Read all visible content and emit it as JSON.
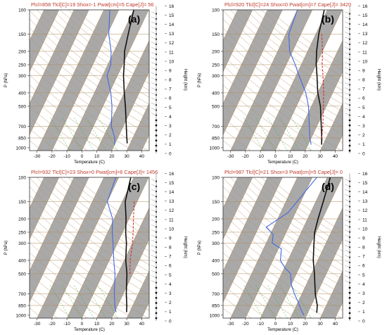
{
  "chart_data": [
    {
      "type": "line",
      "panel_label": "(a)",
      "header": "Plcl=858 Tlcl[C]=19 Shox=-1 Pwat[cm]=5 Cape[J]= 56",
      "xlabel": "Temperature (C)",
      "ylabel": "P (hPa)",
      "height_label": "Height (km)",
      "x_ticks": [
        "-30",
        "-20",
        "-10",
        "0",
        "10",
        "20",
        "30",
        "40"
      ],
      "p_ticks": [
        "100",
        "150",
        "200",
        "250",
        "300",
        "400",
        "500",
        "700",
        "850",
        "1000"
      ],
      "h_ticks": [
        "0",
        "1",
        "2",
        "3",
        "4",
        "5",
        "6",
        "7",
        "8",
        "9",
        "10",
        "11",
        "12",
        "13",
        "14",
        "15",
        "16"
      ],
      "xlim": [
        -35,
        45
      ],
      "plim": [
        100,
        1050
      ],
      "series": [
        {
          "role": "temperature",
          "color": "#111111",
          "points": [
            [
              -10,
              100
            ],
            [
              -6,
              150
            ],
            [
              -3,
              200
            ],
            [
              1,
              250
            ],
            [
              4,
              300
            ],
            [
              10,
              400
            ],
            [
              15,
              500
            ],
            [
              22,
              700
            ],
            [
              26,
              850
            ],
            [
              28,
              930
            ]
          ]
        },
        {
          "role": "dewpoint",
          "color": "#4169e1",
          "points": [
            [
              -26,
              100
            ],
            [
              -19,
              150
            ],
            [
              -12,
              200
            ],
            [
              -8,
              250
            ],
            [
              -7,
              300
            ],
            [
              1,
              400
            ],
            [
              6,
              500
            ],
            [
              12,
              700
            ],
            [
              18,
              850
            ],
            [
              20,
              950
            ]
          ]
        }
      ]
    },
    {
      "type": "line",
      "panel_label": "(b)",
      "header": "Plcl=920 Tlcl[C]=24 Shox=0 Pwat[cm]=7 Cape[J]= 3420",
      "xlabel": "Temperature (C)",
      "ylabel": "P (hPa)",
      "height_label": "Height (km)",
      "x_ticks": [
        "-30",
        "-20",
        "-10",
        "0",
        "10",
        "20",
        "30",
        "40"
      ],
      "p_ticks": [
        "100",
        "150",
        "200",
        "250",
        "300",
        "400",
        "500",
        "700",
        "850",
        "1000"
      ],
      "h_ticks": [
        "0",
        "1",
        "2",
        "3",
        "4",
        "5",
        "6",
        "7",
        "8",
        "9",
        "10",
        "11",
        "12",
        "13",
        "14",
        "15",
        "16"
      ],
      "xlim": [
        -35,
        45
      ],
      "plim": [
        100,
        1050
      ],
      "series": [
        {
          "role": "temperature",
          "color": "#111111",
          "points": [
            [
              -12,
              100
            ],
            [
              -8,
              150
            ],
            [
              -4,
              200
            ],
            [
              0,
              250
            ],
            [
              4,
              300
            ],
            [
              10,
              400
            ],
            [
              16,
              500
            ],
            [
              23,
              700
            ],
            [
              27,
              850
            ],
            [
              29,
              950
            ]
          ]
        },
        {
          "role": "dewpoint",
          "color": "#4169e1",
          "points": [
            [
              -30,
              100
            ],
            [
              -28,
              150
            ],
            [
              -22,
              200
            ],
            [
              -14,
              250
            ],
            [
              -8,
              300
            ],
            [
              2,
              400
            ],
            [
              8,
              500
            ],
            [
              15,
              700
            ],
            [
              19,
              850
            ],
            [
              22,
              950
            ]
          ]
        },
        {
          "role": "parcel",
          "color": "#d62728",
          "dashed": true,
          "points": [
            [
              -6,
              150
            ],
            [
              0,
              200
            ],
            [
              4,
              250
            ],
            [
              8,
              300
            ],
            [
              14,
              400
            ],
            [
              18,
              500
            ],
            [
              24,
              700
            ],
            [
              27,
              850
            ]
          ]
        }
      ]
    },
    {
      "type": "line",
      "panel_label": "(c)",
      "header": "Plcl=932 Tlcl[C]=23 Shox=0 Pwat[cm]=6 Cape[J]= 1456",
      "xlabel": "Temperature (C)",
      "ylabel": "P (hPa)",
      "height_label": "Height (km)",
      "x_ticks": [
        "-30",
        "-20",
        "-10",
        "0",
        "10",
        "20",
        "30",
        "40"
      ],
      "p_ticks": [
        "100",
        "150",
        "200",
        "250",
        "300",
        "400",
        "500",
        "700",
        "850",
        "1000"
      ],
      "h_ticks": [
        "0",
        "1",
        "2",
        "3",
        "4",
        "5",
        "6",
        "7",
        "8",
        "9",
        "10",
        "11",
        "12",
        "13",
        "14",
        "15",
        "16"
      ],
      "xlim": [
        -35,
        45
      ],
      "plim": [
        100,
        1050
      ],
      "series": [
        {
          "role": "temperature",
          "color": "#111111",
          "points": [
            [
              -12,
              100
            ],
            [
              -8,
              150
            ],
            [
              -2,
              200
            ],
            [
              2,
              250
            ],
            [
              6,
              300
            ],
            [
              11,
              400
            ],
            [
              16,
              500
            ],
            [
              22,
              700
            ],
            [
              26,
              850
            ],
            [
              28,
              950
            ]
          ]
        },
        {
          "role": "dewpoint",
          "color": "#4169e1",
          "points": [
            [
              -22,
              100
            ],
            [
              -20,
              150
            ],
            [
              -11,
              200
            ],
            [
              -7,
              250
            ],
            [
              -3,
              300
            ],
            [
              3,
              400
            ],
            [
              8,
              500
            ],
            [
              14,
              700
            ],
            [
              18,
              850
            ],
            [
              21,
              950
            ]
          ]
        },
        {
          "role": "parcel",
          "color": "#d62728",
          "dashed": true,
          "points": [
            [
              -2,
              150
            ],
            [
              3,
              200
            ],
            [
              7,
              250
            ],
            [
              10,
              300
            ],
            [
              14,
              400
            ],
            [
              18,
              500
            ]
          ]
        }
      ]
    },
    {
      "type": "line",
      "panel_label": "(d)",
      "header": "Plcl=987 Tlcl[C]=21 Shox=3 Pwat[cm]=5 Cape[J]= 0",
      "xlabel": "Temperature (C)",
      "ylabel": "P (hPa)",
      "height_label": "Height (km)",
      "x_ticks": [
        "-30",
        "-20",
        "-10",
        "0",
        "10",
        "20",
        "30",
        "40"
      ],
      "p_ticks": [
        "100",
        "150",
        "200",
        "250",
        "300",
        "400",
        "500",
        "700",
        "850",
        "1000"
      ],
      "h_ticks": [
        "0",
        "1",
        "2",
        "3",
        "4",
        "5",
        "6",
        "7",
        "8",
        "9",
        "10",
        "11",
        "12",
        "13",
        "14",
        "15",
        "16"
      ],
      "xlim": [
        -35,
        45
      ],
      "plim": [
        100,
        1050
      ],
      "series": [
        {
          "role": "temperature",
          "color": "#111111",
          "points": [
            [
              -8,
              100
            ],
            [
              -5,
              150
            ],
            [
              -3,
              200
            ],
            [
              -1,
              250
            ],
            [
              2,
              300
            ],
            [
              7,
              400
            ],
            [
              12,
              500
            ],
            [
              19,
              700
            ],
            [
              24,
              850
            ],
            [
              26,
              960
            ]
          ]
        },
        {
          "role": "dewpoint",
          "color": "#4169e1",
          "points": [
            [
              -17,
              100
            ],
            [
              -25,
              180
            ],
            [
              -35,
              230
            ],
            [
              -28,
              260
            ],
            [
              -26,
              300
            ],
            [
              -18,
              330
            ],
            [
              -15,
              400
            ],
            [
              -10,
              450
            ],
            [
              -4,
              500
            ],
            [
              0,
              600
            ],
            [
              5,
              700
            ],
            [
              10,
              800
            ],
            [
              14,
              900
            ],
            [
              18,
              1000
            ]
          ]
        }
      ]
    }
  ]
}
